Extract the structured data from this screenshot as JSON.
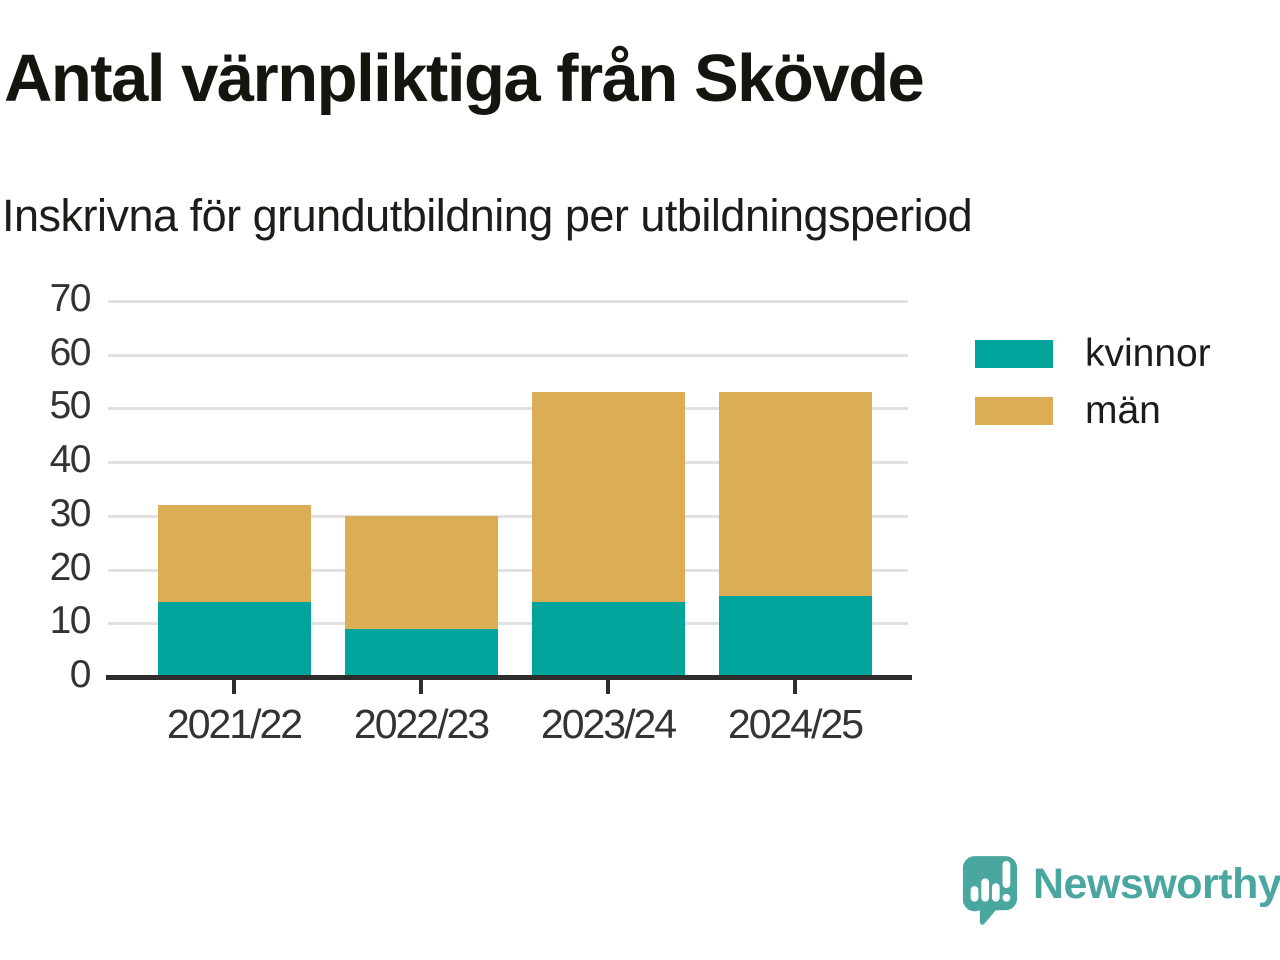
{
  "chart_data": {
    "type": "bar",
    "stacked": true,
    "title": "Antal värnpliktiga från Skövde",
    "subtitle": "Inskrivna för grundutbildning per utbildningsperiod",
    "categories": [
      "2021/22",
      "2022/23",
      "2023/24",
      "2024/25"
    ],
    "series": [
      {
        "name": "kvinnor",
        "color": "#00a49a",
        "values": [
          14,
          9,
          14,
          15
        ]
      },
      {
        "name": "män",
        "color": "#dbae55",
        "values": [
          18,
          21,
          39,
          38
        ]
      }
    ],
    "stack_totals": [
      32,
      30,
      53,
      53
    ],
    "xlabel": "",
    "ylabel": "",
    "ylim": [
      0,
      70
    ],
    "yticks": [
      0,
      10,
      20,
      30,
      40,
      50,
      60,
      70
    ],
    "grid": true,
    "legend_position": "right"
  },
  "footer": {
    "brand": "Newsworthy",
    "logo_icon": "bar-chart-speech-bubble-icon",
    "brand_color": "#4aa79f"
  },
  "style": {
    "background": "#ffffff",
    "title_color": "#16140f",
    "axis_label_color": "#333333",
    "gridline_color": "#e1e1e1",
    "axis_line_color": "#2d2d2c"
  }
}
